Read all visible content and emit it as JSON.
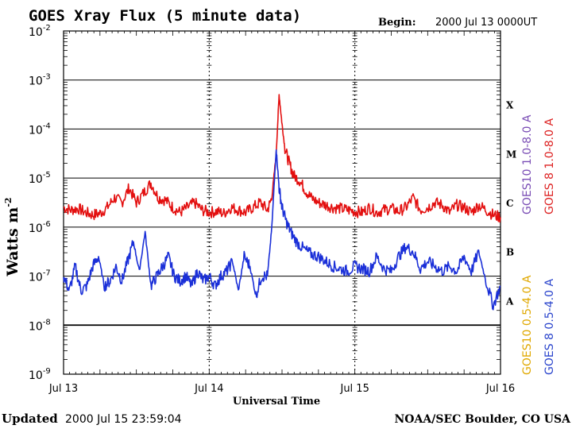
{
  "chart_data": {
    "type": "line",
    "title": "GOES Xray Flux (5 minute data)",
    "begin_label": "Begin:",
    "begin_value": "2000 Jul 13 0000UT",
    "ylabel": "Watts m",
    "ylabel_exp": "-2",
    "xlabel": "Universal Time",
    "updated_label": "Updated",
    "updated_value": "2000 Jul 15 23:59:04",
    "credit": "NOAA/SEC Boulder, CO USA",
    "y_scale": "log",
    "ylim_exp": [
      -9,
      -2
    ],
    "y_ticks": [
      {
        "base": "10",
        "exp": "-2",
        "value": -2
      },
      {
        "base": "10",
        "exp": "-3",
        "value": -3
      },
      {
        "base": "10",
        "exp": "-4",
        "value": -4
      },
      {
        "base": "10",
        "exp": "-5",
        "value": -5
      },
      {
        "base": "10",
        "exp": "-6",
        "value": -6
      },
      {
        "base": "10",
        "exp": "-7",
        "value": -7
      },
      {
        "base": "10",
        "exp": "-8",
        "value": -8
      },
      {
        "base": "10",
        "exp": "-9",
        "value": -9
      }
    ],
    "x_range_days": [
      0,
      3
    ],
    "x_ticks": [
      {
        "label": "Jul 13",
        "day": 0
      },
      {
        "label": "Jul 14",
        "day": 1
      },
      {
        "label": "Jul 15",
        "day": 2
      },
      {
        "label": "Jul 16",
        "day": 3
      }
    ],
    "flare_classes": [
      {
        "label": "X",
        "level": -3.5
      },
      {
        "label": "M",
        "level": -4.5
      },
      {
        "label": "C",
        "level": -5.5
      },
      {
        "label": "B",
        "level": -6.5
      },
      {
        "label": "A",
        "level": -7.5
      }
    ],
    "legend": [
      {
        "label": "GOES10 1.0-8.0 A",
        "color": "#7a4db5"
      },
      {
        "label": "GOES 8 1.0-8.0 A",
        "color": "#dd2222"
      },
      {
        "label": "GOES10 0.5-4.0 A",
        "color": "#e0a800"
      },
      {
        "label": "GOES 8 0.5-4.0 A",
        "color": "#2a44cc"
      }
    ],
    "series": [
      {
        "name": "GOES 8 1.0-8.0 A",
        "color": "#e31010",
        "days": [
          0,
          0.05,
          0.1,
          0.15,
          0.2,
          0.25,
          0.3,
          0.35,
          0.4,
          0.45,
          0.5,
          0.55,
          0.6,
          0.65,
          0.7,
          0.75,
          0.8,
          0.85,
          0.9,
          0.95,
          1.0,
          1.05,
          1.1,
          1.15,
          1.2,
          1.25,
          1.3,
          1.35,
          1.4,
          1.43,
          1.46,
          1.48,
          1.5,
          1.52,
          1.55,
          1.58,
          1.62,
          1.66,
          1.7,
          1.75,
          1.8,
          1.85,
          1.9,
          1.95,
          2.0,
          2.05,
          2.1,
          2.15,
          2.2,
          2.25,
          2.3,
          2.35,
          2.4,
          2.45,
          2.5,
          2.55,
          2.6,
          2.65,
          2.7,
          2.75,
          2.8,
          2.85,
          2.9,
          2.95,
          3.0
        ],
        "log_values": [
          -5.6,
          -5.65,
          -5.62,
          -5.7,
          -5.75,
          -5.72,
          -5.6,
          -5.4,
          -5.5,
          -5.2,
          -5.5,
          -5.3,
          -5.1,
          -5.4,
          -5.45,
          -5.6,
          -5.7,
          -5.6,
          -5.5,
          -5.65,
          -5.7,
          -5.68,
          -5.72,
          -5.6,
          -5.65,
          -5.7,
          -5.6,
          -5.5,
          -5.65,
          -5.4,
          -4.5,
          -3.3,
          -3.9,
          -4.4,
          -4.7,
          -4.95,
          -5.05,
          -5.25,
          -5.4,
          -5.5,
          -5.55,
          -5.6,
          -5.62,
          -5.65,
          -5.68,
          -5.7,
          -5.6,
          -5.7,
          -5.65,
          -5.62,
          -5.68,
          -5.6,
          -5.4,
          -5.65,
          -5.6,
          -5.5,
          -5.55,
          -5.7,
          -5.55,
          -5.6,
          -5.7,
          -5.55,
          -5.65,
          -5.75,
          -5.8
        ]
      },
      {
        "name": "GOES 8 0.5-4.0 A",
        "color": "#1a2fd8",
        "days": [
          0,
          0.04,
          0.08,
          0.12,
          0.16,
          0.2,
          0.24,
          0.28,
          0.32,
          0.36,
          0.4,
          0.44,
          0.48,
          0.52,
          0.56,
          0.6,
          0.64,
          0.68,
          0.72,
          0.76,
          0.8,
          0.84,
          0.88,
          0.92,
          0.96,
          1.0,
          1.04,
          1.08,
          1.12,
          1.16,
          1.2,
          1.24,
          1.28,
          1.32,
          1.36,
          1.4,
          1.43,
          1.46,
          1.48,
          1.5,
          1.53,
          1.56,
          1.6,
          1.65,
          1.7,
          1.75,
          1.8,
          1.85,
          1.9,
          1.95,
          2.0,
          2.05,
          2.1,
          2.15,
          2.2,
          2.25,
          2.3,
          2.35,
          2.4,
          2.45,
          2.5,
          2.55,
          2.6,
          2.65,
          2.7,
          2.75,
          2.8,
          2.85,
          2.9,
          2.95,
          3.0
        ],
        "log_values": [
          -7.0,
          -7.3,
          -6.8,
          -7.3,
          -7.2,
          -6.8,
          -6.6,
          -7.2,
          -7.1,
          -6.8,
          -7.1,
          -6.7,
          -6.3,
          -6.9,
          -6.1,
          -7.2,
          -7.0,
          -6.8,
          -6.6,
          -7.0,
          -7.1,
          -7.0,
          -7.2,
          -6.9,
          -7.1,
          -7.0,
          -7.2,
          -7.0,
          -6.9,
          -6.7,
          -7.3,
          -6.6,
          -6.8,
          -7.4,
          -7.0,
          -7.0,
          -6.0,
          -4.4,
          -5.2,
          -5.6,
          -5.9,
          -6.1,
          -6.3,
          -6.45,
          -6.55,
          -6.6,
          -6.7,
          -6.8,
          -6.85,
          -6.9,
          -6.8,
          -6.85,
          -6.9,
          -6.6,
          -6.85,
          -6.9,
          -6.6,
          -6.4,
          -6.5,
          -6.85,
          -6.7,
          -6.8,
          -6.9,
          -6.8,
          -6.9,
          -6.6,
          -6.9,
          -6.5,
          -7.1,
          -7.6,
          -7.2
        ]
      }
    ]
  }
}
